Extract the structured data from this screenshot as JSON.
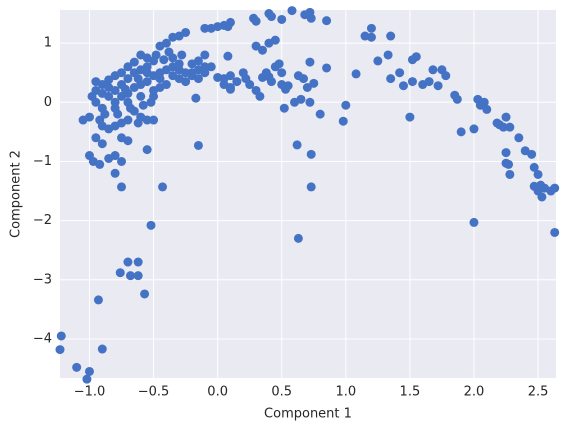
{
  "chart_data": {
    "type": "scatter",
    "color": "#4472c4",
    "grid": true,
    "xlabel": "Component 1",
    "ylabel": "Component 2",
    "xlim": [
      -1.23,
      2.64
    ],
    "ylim": [
      -4.66,
      1.56
    ],
    "xticks": [
      {
        "value": -1.0,
        "label": "−1.0"
      },
      {
        "value": -0.5,
        "label": "−0.5"
      },
      {
        "value": 0.0,
        "label": "0.0"
      },
      0.5,
      {
        "value": 1.0,
        "label": "1.0"
      },
      1.5,
      {
        "value": 2.0,
        "label": "2.0"
      },
      2.5
    ],
    "yticks": [
      {
        "value": -4,
        "label": "−4"
      },
      {
        "value": -3,
        "label": "−3"
      },
      {
        "value": -2,
        "label": "−2"
      },
      {
        "value": -1,
        "label": "−1"
      },
      0,
      1
    ],
    "x": [
      -1.22,
      -1.23,
      -1.1,
      -1.0,
      -1.02,
      -0.93,
      -0.9,
      -0.76,
      -0.7,
      -0.68,
      -0.62,
      -0.62,
      -0.57,
      -0.52,
      -0.43,
      -0.75,
      0.63,
      2.0,
      2.63,
      1.0,
      0.98,
      1.08,
      1.15,
      1.2,
      1.2,
      1.25,
      1.33,
      1.35,
      1.35,
      1.42,
      1.45,
      1.5,
      1.52,
      1.55,
      1.52,
      1.6,
      1.65,
      1.68,
      1.72,
      1.75,
      1.78,
      1.85,
      1.87,
      1.9,
      2.0,
      2.03,
      2.05,
      2.08,
      2.1,
      2.18,
      2.2,
      2.23,
      2.25,
      2.25,
      2.25,
      2.27,
      2.28,
      2.35,
      2.4,
      2.45,
      2.47,
      2.47,
      2.5,
      2.5,
      2.52,
      2.53,
      2.55,
      2.6,
      2.63,
      2.28,
      0.0,
      0.05,
      0.05,
      0.1,
      0.15,
      0.2,
      0.22,
      0.25,
      0.3,
      0.33,
      0.35,
      0.38,
      0.4,
      0.42,
      0.45,
      0.48,
      0.5,
      0.5,
      0.53,
      0.55,
      0.52,
      0.6,
      0.63,
      0.65,
      0.67,
      0.7,
      0.72,
      0.75,
      0.8,
      0.85,
      0.62,
      0.73,
      0.73,
      0.72,
      0.3,
      0.35,
      0.4,
      0.45,
      0.5,
      0.4,
      0.42,
      0.58,
      0.68,
      0.72,
      0.73,
      0.85,
      0.28,
      0.3,
      0.1,
      0.08,
      0.05,
      0.0,
      -0.05,
      -0.1,
      -0.1,
      -0.15,
      -0.2,
      -0.17,
      -0.15,
      -0.05,
      0.08,
      0.1,
      0.1,
      -0.25,
      -0.3,
      -0.35,
      -0.4,
      -0.45,
      -0.48,
      -0.5,
      -0.55,
      -0.6,
      -0.65,
      -0.7,
      -0.75,
      -0.8,
      -0.85,
      -0.9,
      -0.95,
      -0.98,
      -0.95,
      -0.9,
      -0.92,
      -0.95,
      -0.9,
      -1.0,
      -0.97,
      -0.92,
      -0.85,
      -0.8,
      -0.75,
      -0.8,
      -1.05,
      -1.0,
      -0.75,
      -0.7,
      -0.55,
      -0.55,
      -0.6,
      -0.65,
      -0.7,
      -0.75,
      -0.8,
      -0.85,
      -0.9,
      -0.88,
      -0.8,
      -0.7,
      -0.6,
      -0.5,
      -0.4,
      -0.3,
      -0.2,
      -0.1,
      -0.85,
      -0.8,
      -0.75,
      -0.7,
      -0.65,
      -0.6,
      -0.55,
      -0.5,
      -0.45,
      -0.4,
      -0.35,
      -0.3,
      -0.25,
      -0.2,
      -0.15,
      -0.1,
      -0.65,
      -0.6,
      -0.55,
      -0.45,
      -0.35,
      -0.25,
      -0.15,
      -0.8,
      -0.75,
      -0.7,
      -0.5,
      -0.45,
      -0.3,
      -0.28,
      -0.35,
      -0.38,
      -0.42,
      -0.55,
      -0.62,
      -0.72,
      -0.78,
      -0.68,
      -0.58,
      -0.52,
      -0.62,
      -0.5,
      -0.95,
      -0.9,
      -0.85
    ],
    "values": [
      -3.95,
      -4.18,
      -4.48,
      -4.55,
      -4.68,
      -3.34,
      -4.17,
      -2.88,
      -2.7,
      -2.93,
      -2.7,
      -2.93,
      -3.24,
      -2.08,
      -1.43,
      -1.43,
      -2.3,
      -2.03,
      -2.2,
      -0.05,
      -0.32,
      0.48,
      1.12,
      1.25,
      1.1,
      0.7,
      0.8,
      0.4,
      1.12,
      0.5,
      0.28,
      -0.25,
      0.72,
      0.77,
      0.35,
      0.3,
      0.35,
      0.55,
      0.28,
      0.55,
      0.45,
      0.12,
      0.05,
      -0.5,
      -0.45,
      0.05,
      -0.05,
      0.0,
      -0.12,
      -0.35,
      -0.38,
      -0.42,
      -0.25,
      -0.85,
      -1.03,
      -1.05,
      -1.22,
      -0.6,
      -0.82,
      -0.88,
      -1.1,
      -1.42,
      -1.5,
      -1.22,
      -1.4,
      -1.6,
      -1.45,
      -1.5,
      -1.45,
      -0.42,
      0.42,
      0.4,
      0.3,
      0.22,
      0.35,
      0.5,
      0.4,
      0.3,
      0.2,
      0.1,
      0.42,
      0.5,
      0.43,
      0.35,
      0.6,
      0.65,
      0.5,
      0.3,
      0.22,
      0.28,
      -0.1,
      0.0,
      0.45,
      0.05,
      0.4,
      0.25,
      0.0,
      0.32,
      -0.2,
      0.58,
      -0.72,
      -0.88,
      -1.43,
      0.68,
      0.95,
      0.88,
      1.0,
      1.05,
      1.4,
      1.5,
      1.45,
      1.55,
      1.48,
      1.52,
      1.42,
      1.38,
      1.42,
      1.37,
      1.35,
      1.28,
      1.3,
      1.28,
      1.25,
      1.25,
      0.8,
      0.7,
      0.65,
      0.07,
      -0.73,
      0.6,
      0.78,
      0.45,
      0.25,
      1.18,
      1.12,
      1.1,
      1.0,
      0.95,
      0.8,
      0.7,
      0.75,
      0.8,
      0.68,
      0.6,
      0.5,
      0.45,
      0.38,
      0.3,
      0.2,
      0.1,
      0.0,
      -0.1,
      -0.3,
      -0.6,
      -0.7,
      -0.9,
      -1.0,
      -1.05,
      -0.95,
      -1.2,
      -1.0,
      -0.9,
      -0.3,
      -0.25,
      -0.6,
      -0.65,
      -0.8,
      -0.3,
      -0.25,
      -0.15,
      -0.3,
      -0.35,
      -0.4,
      -0.45,
      -0.4,
      -0.2,
      -0.1,
      0.0,
      0.1,
      0.2,
      0.3,
      0.4,
      0.5,
      0.6,
      0.1,
      0.2,
      0.3,
      0.4,
      0.5,
      0.55,
      0.5,
      0.45,
      0.5,
      0.55,
      0.6,
      0.55,
      0.5,
      0.45,
      0.55,
      0.5,
      0.25,
      0.3,
      0.35,
      0.4,
      0.45,
      0.35,
      0.4,
      0.0,
      0.1,
      0.15,
      0.1,
      0.25,
      0.65,
      0.8,
      0.75,
      0.85,
      0.72,
      0.6,
      0.4,
      0.22,
      -0.2,
      -0.1,
      -0.05,
      0.0,
      -0.35,
      -0.3,
      0.35,
      0.15,
      0.25
    ]
  }
}
